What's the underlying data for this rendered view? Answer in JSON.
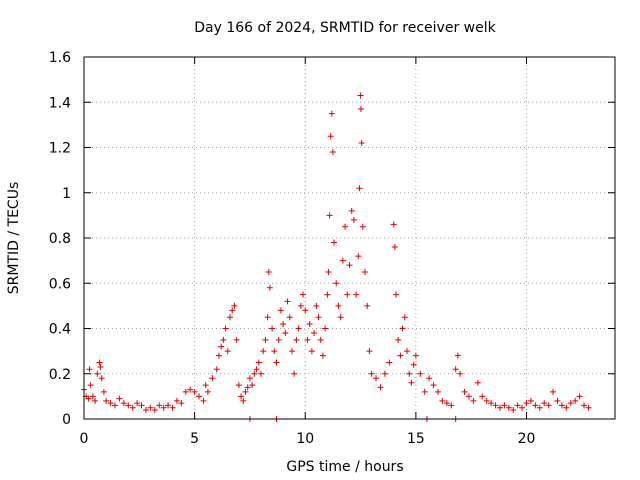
{
  "chart_data": {
    "type": "scatter",
    "title": "Day 166 of 2024, SRMTID for receiver welk",
    "xlabel": "GPS time / hours",
    "ylabel": "SRMTID / TECUs",
    "xlim": [
      0,
      24.0
    ],
    "ylim": [
      0,
      1.6
    ],
    "xticks": [
      0,
      5,
      10,
      15,
      20
    ],
    "xtick_labels": [
      "0",
      "5",
      "10",
      "15",
      "20"
    ],
    "yticks": [
      0,
      0.2,
      0.4,
      0.6,
      0.8,
      1.0,
      1.2,
      1.4,
      1.6
    ],
    "ytick_labels": [
      "0",
      "0.2",
      "0.4",
      "0.6",
      "0.8",
      "1",
      "1.2",
      "1.4",
      "1.6"
    ],
    "grid": true,
    "marker": "+",
    "color": "#e00000",
    "series": [
      {
        "name": "SRMTID",
        "points": [
          [
            0.0,
            0.13
          ],
          [
            0.1,
            0.1
          ],
          [
            0.2,
            0.09
          ],
          [
            0.25,
            0.22
          ],
          [
            0.3,
            0.15
          ],
          [
            0.4,
            0.1
          ],
          [
            0.5,
            0.08
          ],
          [
            0.6,
            0.2
          ],
          [
            0.7,
            0.25
          ],
          [
            0.75,
            0.23
          ],
          [
            0.8,
            0.18
          ],
          [
            0.9,
            0.12
          ],
          [
            1.0,
            0.08
          ],
          [
            1.2,
            0.07
          ],
          [
            1.4,
            0.06
          ],
          [
            1.6,
            0.09
          ],
          [
            1.8,
            0.07
          ],
          [
            2.0,
            0.06
          ],
          [
            2.2,
            0.05
          ],
          [
            2.4,
            0.07
          ],
          [
            2.6,
            0.06
          ],
          [
            2.8,
            0.04
          ],
          [
            3.0,
            0.05
          ],
          [
            3.2,
            0.04
          ],
          [
            3.4,
            0.06
          ],
          [
            3.6,
            0.05
          ],
          [
            3.8,
            0.06
          ],
          [
            4.0,
            0.05
          ],
          [
            4.2,
            0.08
          ],
          [
            4.4,
            0.07
          ],
          [
            4.6,
            0.12
          ],
          [
            4.8,
            0.13
          ],
          [
            5.0,
            0.12
          ],
          [
            5.2,
            0.1
          ],
          [
            5.4,
            0.08
          ],
          [
            5.5,
            0.15
          ],
          [
            5.6,
            0.12
          ],
          [
            5.8,
            0.18
          ],
          [
            6.0,
            0.22
          ],
          [
            6.1,
            0.28
          ],
          [
            6.2,
            0.32
          ],
          [
            6.3,
            0.35
          ],
          [
            6.4,
            0.4
          ],
          [
            6.5,
            0.3
          ],
          [
            6.6,
            0.45
          ],
          [
            6.7,
            0.48
          ],
          [
            6.8,
            0.5
          ],
          [
            6.9,
            0.35
          ],
          [
            7.0,
            0.15
          ],
          [
            7.1,
            0.1
          ],
          [
            7.2,
            0.08
          ],
          [
            7.3,
            0.12
          ],
          [
            7.4,
            0.14
          ],
          [
            7.5,
            0.18
          ],
          [
            7.6,
            0.15
          ],
          [
            7.7,
            0.2
          ],
          [
            7.8,
            0.22
          ],
          [
            7.9,
            0.25
          ],
          [
            8.0,
            0.2
          ],
          [
            8.1,
            0.3
          ],
          [
            8.2,
            0.35
          ],
          [
            8.3,
            0.45
          ],
          [
            8.35,
            0.65
          ],
          [
            8.4,
            0.58
          ],
          [
            8.5,
            0.4
          ],
          [
            8.6,
            0.3
          ],
          [
            8.7,
            0.25
          ],
          [
            8.8,
            0.35
          ],
          [
            8.9,
            0.48
          ],
          [
            9.0,
            0.42
          ],
          [
            9.1,
            0.38
          ],
          [
            9.2,
            0.52
          ],
          [
            9.3,
            0.45
          ],
          [
            9.4,
            0.3
          ],
          [
            9.5,
            0.2
          ],
          [
            9.6,
            0.35
          ],
          [
            9.7,
            0.4
          ],
          [
            9.8,
            0.5
          ],
          [
            9.9,
            0.55
          ],
          [
            10.0,
            0.48
          ],
          [
            10.1,
            0.35
          ],
          [
            10.2,
            0.42
          ],
          [
            10.3,
            0.3
          ],
          [
            10.4,
            0.38
          ],
          [
            10.5,
            0.5
          ],
          [
            10.6,
            0.45
          ],
          [
            10.7,
            0.35
          ],
          [
            10.8,
            0.28
          ],
          [
            10.9,
            0.4
          ],
          [
            11.0,
            0.55
          ],
          [
            11.05,
            0.65
          ],
          [
            11.1,
            0.9
          ],
          [
            11.15,
            1.25
          ],
          [
            11.2,
            1.35
          ],
          [
            11.25,
            1.18
          ],
          [
            11.3,
            0.78
          ],
          [
            11.4,
            0.6
          ],
          [
            11.5,
            0.5
          ],
          [
            11.6,
            0.45
          ],
          [
            11.7,
            0.7
          ],
          [
            11.8,
            0.85
          ],
          [
            11.9,
            0.55
          ],
          [
            12.0,
            0.68
          ],
          [
            12.1,
            0.92
          ],
          [
            12.2,
            0.88
          ],
          [
            12.3,
            0.55
          ],
          [
            12.4,
            0.72
          ],
          [
            12.45,
            1.02
          ],
          [
            12.5,
            1.43
          ],
          [
            12.52,
            1.37
          ],
          [
            12.55,
            1.22
          ],
          [
            12.6,
            0.85
          ],
          [
            12.7,
            0.65
          ],
          [
            12.8,
            0.5
          ],
          [
            12.9,
            0.3
          ],
          [
            13.0,
            0.2
          ],
          [
            13.2,
            0.18
          ],
          [
            13.4,
            0.14
          ],
          [
            13.6,
            0.2
          ],
          [
            13.8,
            0.25
          ],
          [
            14.0,
            0.86
          ],
          [
            14.05,
            0.76
          ],
          [
            14.1,
            0.55
          ],
          [
            14.2,
            0.35
          ],
          [
            14.3,
            0.28
          ],
          [
            14.4,
            0.4
          ],
          [
            14.5,
            0.45
          ],
          [
            14.6,
            0.3
          ],
          [
            14.7,
            0.2
          ],
          [
            14.8,
            0.16
          ],
          [
            14.9,
            0.24
          ],
          [
            15.0,
            0.28
          ],
          [
            15.2,
            0.2
          ],
          [
            15.4,
            0.12
          ],
          [
            15.6,
            0.18
          ],
          [
            15.8,
            0.15
          ],
          [
            16.0,
            0.12
          ],
          [
            16.2,
            0.08
          ],
          [
            16.4,
            0.07
          ],
          [
            16.6,
            0.06
          ],
          [
            16.8,
            0.22
          ],
          [
            16.9,
            0.28
          ],
          [
            17.0,
            0.2
          ],
          [
            17.2,
            0.12
          ],
          [
            17.4,
            0.1
          ],
          [
            17.6,
            0.08
          ],
          [
            17.8,
            0.16
          ],
          [
            18.0,
            0.1
          ],
          [
            18.2,
            0.08
          ],
          [
            18.4,
            0.07
          ],
          [
            18.6,
            0.06
          ],
          [
            18.8,
            0.05
          ],
          [
            19.0,
            0.06
          ],
          [
            19.2,
            0.05
          ],
          [
            19.4,
            0.04
          ],
          [
            19.6,
            0.06
          ],
          [
            19.8,
            0.05
          ],
          [
            20.0,
            0.07
          ],
          [
            20.2,
            0.08
          ],
          [
            20.4,
            0.06
          ],
          [
            20.6,
            0.05
          ],
          [
            20.8,
            0.07
          ],
          [
            21.0,
            0.06
          ],
          [
            21.2,
            0.12
          ],
          [
            21.4,
            0.08
          ],
          [
            21.6,
            0.06
          ],
          [
            21.8,
            0.05
          ],
          [
            22.0,
            0.07
          ],
          [
            22.2,
            0.08
          ],
          [
            22.4,
            0.1
          ],
          [
            22.6,
            0.06
          ],
          [
            22.8,
            0.05
          ],
          [
            7.5,
            0.0
          ],
          [
            8.7,
            0.0
          ],
          [
            15.5,
            0.0
          ],
          [
            16.8,
            0.0
          ]
        ]
      }
    ]
  }
}
